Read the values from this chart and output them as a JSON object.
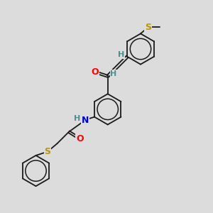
{
  "background_color": "#dcdcdc",
  "bond_color": "#1a1a1a",
  "atom_colors": {
    "O": "#ff0000",
    "N": "#0000cc",
    "S_top": "#b8960c",
    "S_bot": "#b8960c",
    "H": "#4a9090",
    "C": "#1a1a1a"
  },
  "font_size": 8,
  "lw": 1.3,
  "figure_size": [
    3.0,
    3.0
  ],
  "dpi": 100,
  "xlim": [
    0,
    10
  ],
  "ylim": [
    0,
    10
  ]
}
